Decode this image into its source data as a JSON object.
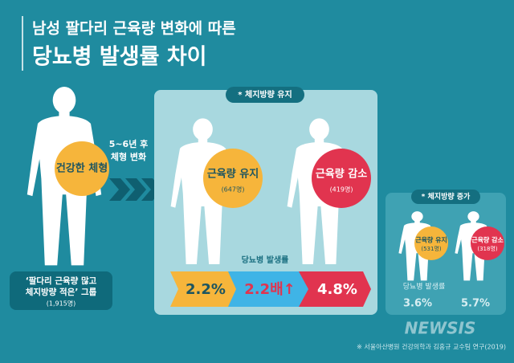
{
  "title": {
    "line1": "남성 팔다리 근육량 변화에 따른",
    "line2": "당뇨병 발생률 차이"
  },
  "baseline": {
    "circle": "건강한 체형",
    "group_line1": "‘팔다리 근육량 많고",
    "group_line2": "체지방량 적은’ 그룹",
    "count": "(1,915명)"
  },
  "transition": {
    "line1": "5~6년 후",
    "line2": "체형 변화"
  },
  "fat_maintained": {
    "tag": "* 체지방량 유지",
    "muscle_kept": "근육량 유지",
    "muscle_kept_count": "(647명)",
    "muscle_lost": "근육량 감소",
    "muscle_lost_count": "(419명)",
    "rate_label": "당뇨병 발생률",
    "rate_kept": "2.2%",
    "ratio": "2.2배↑",
    "rate_lost": "4.8%"
  },
  "fat_increased": {
    "tag": "* 체지방량 증가",
    "muscle_kept": "근육량 유지",
    "muscle_kept_count": "(531명)",
    "muscle_lost": "근육량 감소",
    "muscle_lost_count": "(318명)",
    "rate_label": "당뇨병 발생률",
    "rate_kept": "3.6%",
    "rate_lost": "5.7%"
  },
  "source": "※ 서울아산병원 건강의학과 김홍규 교수팀 연구(2019)",
  "watermark": "NEWSIS"
}
